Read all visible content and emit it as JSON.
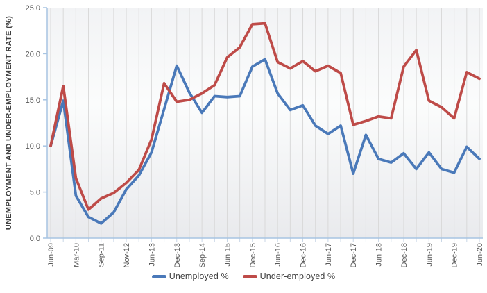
{
  "chart": {
    "y_axis_title": "UNEMPLOYMENT AND UNDER-EMPLOYMENT RATE (%)",
    "legend": {
      "unemployed_label": "Unemployed %",
      "underemployed_label": "Under-employed %"
    },
    "colors": {
      "unemployed": "#4A79B9",
      "underemployed": "#BE4B48",
      "axis": "#A7C4E2",
      "gridline": "#D9D9D9",
      "tick_text": "#595959"
    }
  },
  "chart_data": {
    "type": "line",
    "title": "",
    "xlabel": "",
    "ylabel": "UNEMPLOYMENT AND UNDER-EMPLOYMENT RATE (%)",
    "ylim": [
      0,
      25
    ],
    "ytick_labels": [
      "0.0",
      "5.0",
      "10.0",
      "15.0",
      "20.0",
      "25.0"
    ],
    "grid": "vertical",
    "legend_position": "bottom",
    "n_points": 35,
    "x_label_every": 2,
    "x_tick_labels": [
      "Jun-09",
      "Mar-10",
      "Sep-11",
      "Nov-12",
      "Jun-13",
      "Dec-13",
      "Sep-14",
      "Jun-15",
      "Dec-15",
      "Jun-16",
      "Dec-16",
      "Jun-17",
      "Dec-17",
      "Jun-18",
      "Dec-18",
      "Jun-19",
      "Dec-19",
      "Jun-20"
    ],
    "series": [
      {
        "name": "Unemployed %",
        "color": "#4A79B9",
        "values": [
          10.0,
          14.9,
          4.6,
          2.3,
          1.6,
          2.8,
          5.3,
          6.8,
          9.3,
          14.0,
          18.7,
          15.8,
          13.6,
          15.4,
          15.3,
          15.4,
          18.6,
          19.4,
          15.7,
          13.9,
          14.4,
          12.2,
          11.3,
          12.2,
          7.0,
          11.2,
          8.6,
          8.2,
          9.2,
          7.5,
          9.3,
          7.5,
          7.1,
          9.9,
          8.6
        ]
      },
      {
        "name": "Under-employed %",
        "color": "#BE4B48",
        "values": [
          10.0,
          16.5,
          6.5,
          3.1,
          4.3,
          4.9,
          6.0,
          7.4,
          10.7,
          16.8,
          14.8,
          15.0,
          15.7,
          16.6,
          19.6,
          20.7,
          23.2,
          23.3,
          19.1,
          18.4,
          19.2,
          18.1,
          18.7,
          17.9,
          12.3,
          12.7,
          13.2,
          13.0,
          18.6,
          20.4,
          14.9,
          14.2,
          13.0,
          18.0,
          17.3
        ]
      }
    ]
  }
}
